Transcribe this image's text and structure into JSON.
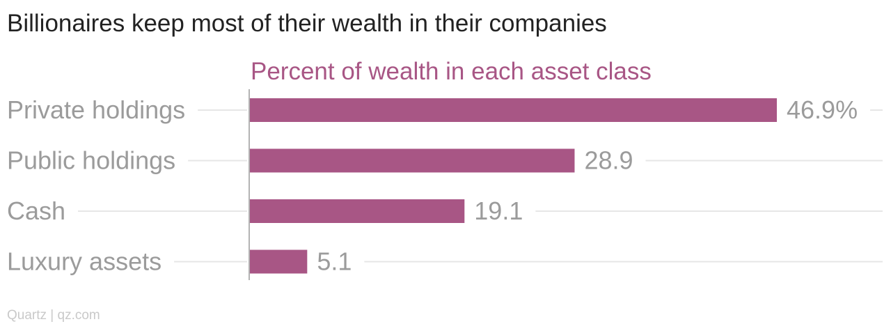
{
  "title": "Billionaires keep most of their wealth in their companies",
  "source": "Quartz | qz.com",
  "colors": {
    "bar": "#a85685",
    "subtitle": "#a85685",
    "category_label": "#9b9b9b",
    "value_label": "#9b9b9b",
    "title": "#222222",
    "gridline": "#e6e6e6",
    "axis": "#9a9a9a"
  },
  "chart_data": {
    "type": "bar",
    "orientation": "horizontal",
    "subtitle": "Percent of wealth in each asset class",
    "categories": [
      "Private holdings",
      "Public holdings",
      "Cash",
      "Luxury assets"
    ],
    "values": [
      46.9,
      28.9,
      19.1,
      5.1
    ],
    "value_labels": [
      "46.9%",
      "28.9",
      "19.1",
      "5.1"
    ],
    "xlim": [
      0,
      50
    ],
    "grid": true,
    "legend": "none"
  }
}
